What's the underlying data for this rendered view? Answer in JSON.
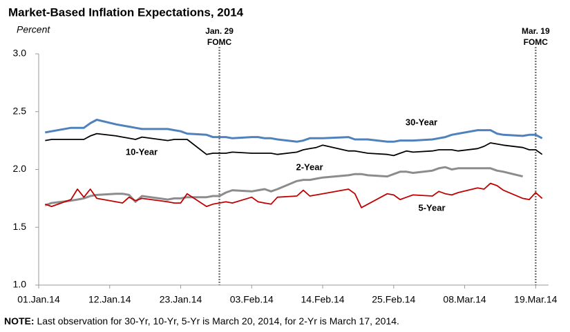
{
  "chart_data": {
    "type": "line",
    "title": "Market-Based  Inflation  Expectations, 2014",
    "y_label": "Percent",
    "x": [
      "2014-01-02",
      "2014-01-03",
      "2014-01-06",
      "2014-01-07",
      "2014-01-08",
      "2014-01-09",
      "2014-01-10",
      "2014-01-13",
      "2014-01-14",
      "2014-01-15",
      "2014-01-16",
      "2014-01-17",
      "2014-01-21",
      "2014-01-22",
      "2014-01-23",
      "2014-01-24",
      "2014-01-27",
      "2014-01-28",
      "2014-01-29",
      "2014-01-30",
      "2014-01-31",
      "2014-02-03",
      "2014-02-04",
      "2014-02-05",
      "2014-02-06",
      "2014-02-07",
      "2014-02-10",
      "2014-02-11",
      "2014-02-12",
      "2014-02-13",
      "2014-02-14",
      "2014-02-18",
      "2014-02-19",
      "2014-02-20",
      "2014-02-21",
      "2014-02-24",
      "2014-02-25",
      "2014-02-26",
      "2014-02-27",
      "2014-02-28",
      "2014-03-03",
      "2014-03-04",
      "2014-03-05",
      "2014-03-06",
      "2014-03-07",
      "2014-03-10",
      "2014-03-11",
      "2014-03-12",
      "2014-03-13",
      "2014-03-14",
      "2014-03-17",
      "2014-03-18",
      "2014-03-19",
      "2014-03-20"
    ],
    "series": [
      {
        "name": "30-Year",
        "color": "#4f81bd",
        "values": [
          2.32,
          2.33,
          2.36,
          2.36,
          2.36,
          2.4,
          2.43,
          2.39,
          2.38,
          2.37,
          2.36,
          2.35,
          2.35,
          2.34,
          2.33,
          2.31,
          2.3,
          2.28,
          2.28,
          2.28,
          2.27,
          2.28,
          2.28,
          2.27,
          2.27,
          2.26,
          2.24,
          2.25,
          2.27,
          2.27,
          2.27,
          2.28,
          2.26,
          2.26,
          2.26,
          2.24,
          2.24,
          2.25,
          2.25,
          2.25,
          2.26,
          2.27,
          2.28,
          2.3,
          2.31,
          2.34,
          2.34,
          2.34,
          2.31,
          2.3,
          2.29,
          2.3,
          2.3,
          2.27
        ]
      },
      {
        "name": "10-Year",
        "color": "#000000",
        "values": [
          2.25,
          2.26,
          2.26,
          2.26,
          2.26,
          2.29,
          2.31,
          2.29,
          2.28,
          2.27,
          2.26,
          2.28,
          2.25,
          2.26,
          2.26,
          2.26,
          2.13,
          2.14,
          2.14,
          2.14,
          2.15,
          2.14,
          2.14,
          2.14,
          2.14,
          2.13,
          2.15,
          2.17,
          2.18,
          2.19,
          2.21,
          2.16,
          2.16,
          2.15,
          2.14,
          2.13,
          2.12,
          2.14,
          2.16,
          2.15,
          2.16,
          2.17,
          2.17,
          2.17,
          2.16,
          2.18,
          2.2,
          2.23,
          2.22,
          2.21,
          2.19,
          2.17,
          2.17,
          2.13
        ]
      },
      {
        "name": "2-Year",
        "color": "#8c8c8c",
        "values": [
          1.69,
          1.71,
          1.73,
          1.74,
          1.75,
          1.77,
          1.78,
          1.79,
          1.79,
          1.78,
          1.72,
          1.77,
          1.74,
          1.75,
          1.75,
          1.76,
          1.76,
          1.77,
          1.77,
          1.8,
          1.82,
          1.81,
          1.82,
          1.83,
          1.81,
          1.83,
          1.9,
          1.91,
          1.91,
          1.92,
          1.93,
          1.95,
          1.96,
          1.96,
          1.95,
          1.94,
          1.96,
          1.98,
          1.98,
          1.97,
          1.99,
          2.01,
          2.02,
          2.0,
          2.01,
          2.01,
          2.01,
          2.01,
          1.99,
          1.98,
          1.94,
          null,
          null,
          null
        ]
      },
      {
        "name": "5-Year",
        "color": "#c00000",
        "values": [
          1.7,
          1.68,
          1.74,
          1.83,
          1.76,
          1.83,
          1.75,
          1.72,
          1.71,
          1.76,
          1.73,
          1.75,
          1.72,
          1.71,
          1.71,
          1.79,
          1.68,
          1.7,
          1.71,
          1.72,
          1.71,
          1.76,
          1.72,
          1.71,
          1.7,
          1.76,
          1.77,
          1.82,
          1.77,
          1.78,
          1.79,
          1.83,
          1.79,
          1.67,
          1.7,
          1.79,
          1.78,
          1.74,
          1.76,
          1.78,
          1.77,
          1.81,
          1.79,
          1.78,
          1.8,
          1.84,
          1.83,
          1.88,
          1.86,
          1.82,
          1.75,
          1.74,
          1.8,
          1.75
        ]
      }
    ],
    "xlim": [
      "2014-01-01",
      "2014-03-21"
    ],
    "xticks": [
      {
        "value": "2014-01-01",
        "label": "01.Jan.14"
      },
      {
        "value": "2014-01-12",
        "label": "12.Jan.14"
      },
      {
        "value": "2014-01-23",
        "label": "23.Jan.14"
      },
      {
        "value": "2014-02-03",
        "label": "03.Feb.14"
      },
      {
        "value": "2014-02-14",
        "label": "14.Feb.14"
      },
      {
        "value": "2014-02-25",
        "label": "25.Feb.14"
      },
      {
        "value": "2014-03-08",
        "label": "08.Mar.14"
      },
      {
        "value": "2014-03-19",
        "label": "19.Mar.14"
      }
    ],
    "ylim": [
      1,
      3
    ],
    "yticks": [
      {
        "value": 1,
        "label": "1.0"
      },
      {
        "value": 1.5,
        "label": "1.5"
      },
      {
        "value": 2,
        "label": "2.0"
      },
      {
        "value": 2.5,
        "label": "2.5"
      },
      {
        "value": 3,
        "label": "3.0"
      }
    ],
    "grid": false,
    "annotations": [
      {
        "x": "2014-01-29",
        "label": "Jan. 29",
        "sublabel": "FOMC"
      },
      {
        "x": "2014-03-19",
        "label": "Mar. 19",
        "sublabel": "FOMC"
      }
    ],
    "note": {
      "label": "NOTE:",
      "text": " Last observation for 30-Yr, 10-Yr, 5-Yr is March 20, 2014,  for 2-Yr is March 17, 2014."
    }
  }
}
